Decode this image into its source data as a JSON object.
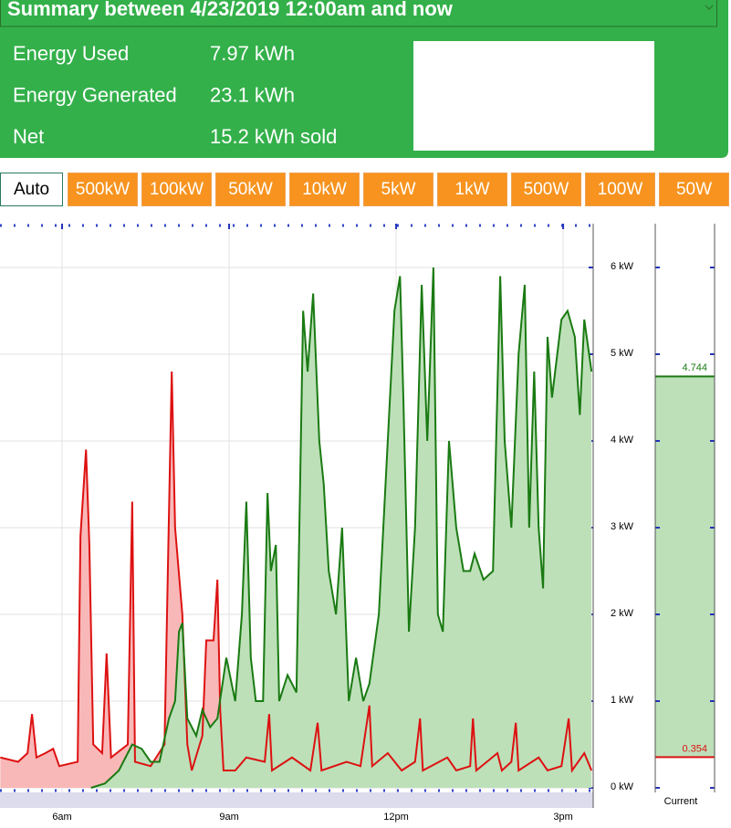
{
  "header": {
    "title": "Summary between 4/23/2019 12:00am and now",
    "rows": [
      {
        "label": "Energy Used",
        "value": "7.97 kWh"
      },
      {
        "label": "Energy Generated",
        "value": "23.1 kWh"
      },
      {
        "label": "Net",
        "value": "15.2 kWh sold"
      }
    ]
  },
  "buttons": [
    "Auto",
    "500kW",
    "100kW",
    "50kW",
    "10kW",
    "5kW",
    "1kW",
    "500W",
    "100W",
    "50W"
  ],
  "chart_data": {
    "type": "area",
    "xlim": [
      4.885,
      15.54
    ],
    "xticks": [
      {
        "value": 6,
        "label": "6am"
      },
      {
        "value": 9,
        "label": "9am"
      },
      {
        "value": 12,
        "label": "12pm"
      },
      {
        "value": 15,
        "label": "3pm"
      }
    ],
    "ylim": [
      0,
      6.5
    ],
    "yticks": [
      {
        "value": 0,
        "label": "0 kW"
      },
      {
        "value": 1,
        "label": "1 kW"
      },
      {
        "value": 2,
        "label": "2 kW"
      },
      {
        "value": 3,
        "label": "3 kW"
      },
      {
        "value": 4,
        "label": "4 kW"
      },
      {
        "value": 5,
        "label": "5 kW"
      },
      {
        "value": 6,
        "label": "6 kW"
      }
    ],
    "grid": true,
    "series": [
      {
        "color": "#dd1111",
        "fill": "#f9b8b8",
        "x": [
          4.89,
          5.21,
          5.38,
          5.46,
          5.54,
          5.7,
          5.84,
          5.95,
          6.28,
          6.33,
          6.43,
          6.49,
          6.56,
          6.72,
          6.8,
          6.88,
          7.18,
          7.26,
          7.31,
          7.59,
          7.84,
          7.93,
          7.97,
          8.03,
          8.16,
          8.25,
          8.33,
          8.52,
          8.59,
          8.72,
          8.79,
          8.84,
          8.9,
          9.11,
          9.31,
          9.64,
          9.72,
          9.77,
          10.13,
          10.46,
          10.59,
          10.66,
          11.11,
          11.36,
          11.52,
          11.57,
          11.85,
          12.1,
          12.34,
          12.43,
          12.48,
          12.92,
          13.08,
          13.33,
          13.38,
          13.44,
          13.82,
          13.9,
          14.07,
          14.15,
          14.2,
          14.56,
          14.72,
          14.97,
          15.1,
          15.16,
          15.38,
          15.51
        ],
        "values": [
          0.35,
          0.3,
          0.4,
          0.85,
          0.35,
          0.4,
          0.45,
          0.25,
          0.3,
          2.9,
          3.9,
          2.8,
          0.5,
          0.4,
          1.55,
          0.35,
          0.5,
          3.3,
          0.3,
          0.25,
          0.5,
          3.5,
          4.8,
          3.0,
          2.0,
          0.5,
          0.2,
          0.6,
          1.7,
          1.7,
          2.4,
          0.9,
          0.2,
          0.2,
          0.35,
          0.3,
          0.85,
          0.2,
          0.35,
          0.2,
          0.75,
          0.2,
          0.3,
          0.25,
          0.95,
          0.25,
          0.4,
          0.2,
          0.3,
          0.8,
          0.2,
          0.35,
          0.2,
          0.25,
          0.8,
          0.2,
          0.4,
          0.2,
          0.3,
          0.75,
          0.2,
          0.35,
          0.2,
          0.25,
          0.8,
          0.2,
          0.4,
          0.2
        ]
      },
      {
        "color": "#1a7a12",
        "fill": "#bde0b9",
        "x": [
          6.52,
          6.77,
          7.02,
          7.26,
          7.43,
          7.59,
          7.75,
          7.92,
          8.03,
          8.1,
          8.16,
          8.25,
          8.41,
          8.52,
          8.66,
          8.79,
          8.95,
          9.11,
          9.23,
          9.31,
          9.39,
          9.48,
          9.61,
          9.69,
          9.75,
          9.84,
          9.9,
          10.05,
          10.21,
          10.33,
          10.41,
          10.51,
          10.62,
          10.7,
          10.79,
          10.92,
          11.03,
          11.15,
          11.28,
          11.41,
          11.52,
          11.69,
          11.85,
          11.97,
          12.07,
          12.13,
          12.23,
          12.34,
          12.46,
          12.56,
          12.67,
          12.75,
          12.84,
          12.95,
          13.08,
          13.21,
          13.33,
          13.41,
          13.57,
          13.74,
          13.87,
          13.95,
          14.07,
          14.2,
          14.31,
          14.39,
          14.48,
          14.56,
          14.64,
          14.72,
          14.8,
          14.97,
          15.08,
          15.21,
          15.3,
          15.38,
          15.51
        ],
        "values": [
          0.0,
          0.05,
          0.2,
          0.5,
          0.45,
          0.3,
          0.3,
          0.8,
          1.0,
          1.8,
          1.9,
          0.8,
          0.6,
          0.9,
          0.7,
          0.8,
          1.5,
          1.0,
          2.0,
          3.3,
          1.5,
          1.0,
          1.0,
          3.4,
          2.5,
          2.8,
          1.0,
          1.3,
          1.1,
          5.5,
          4.8,
          5.7,
          4.0,
          3.5,
          2.5,
          2.0,
          3.0,
          1.0,
          1.5,
          1.0,
          1.2,
          2.0,
          4.0,
          5.5,
          5.9,
          4.5,
          1.8,
          3.0,
          5.8,
          4.0,
          6.0,
          2.0,
          1.8,
          4.0,
          3.0,
          2.5,
          2.5,
          2.7,
          2.4,
          2.5,
          5.9,
          4.0,
          3.0,
          5.0,
          5.8,
          3.0,
          4.8,
          3.0,
          2.3,
          5.2,
          4.5,
          5.4,
          5.5,
          5.2,
          4.3,
          5.4,
          4.8
        ]
      }
    ]
  },
  "current": {
    "label": "Current",
    "series": [
      {
        "color": "#1a7a12",
        "fill": "#bde0b9",
        "value": 4.744
      },
      {
        "color": "#dd1111",
        "value": 0.354
      }
    ]
  }
}
